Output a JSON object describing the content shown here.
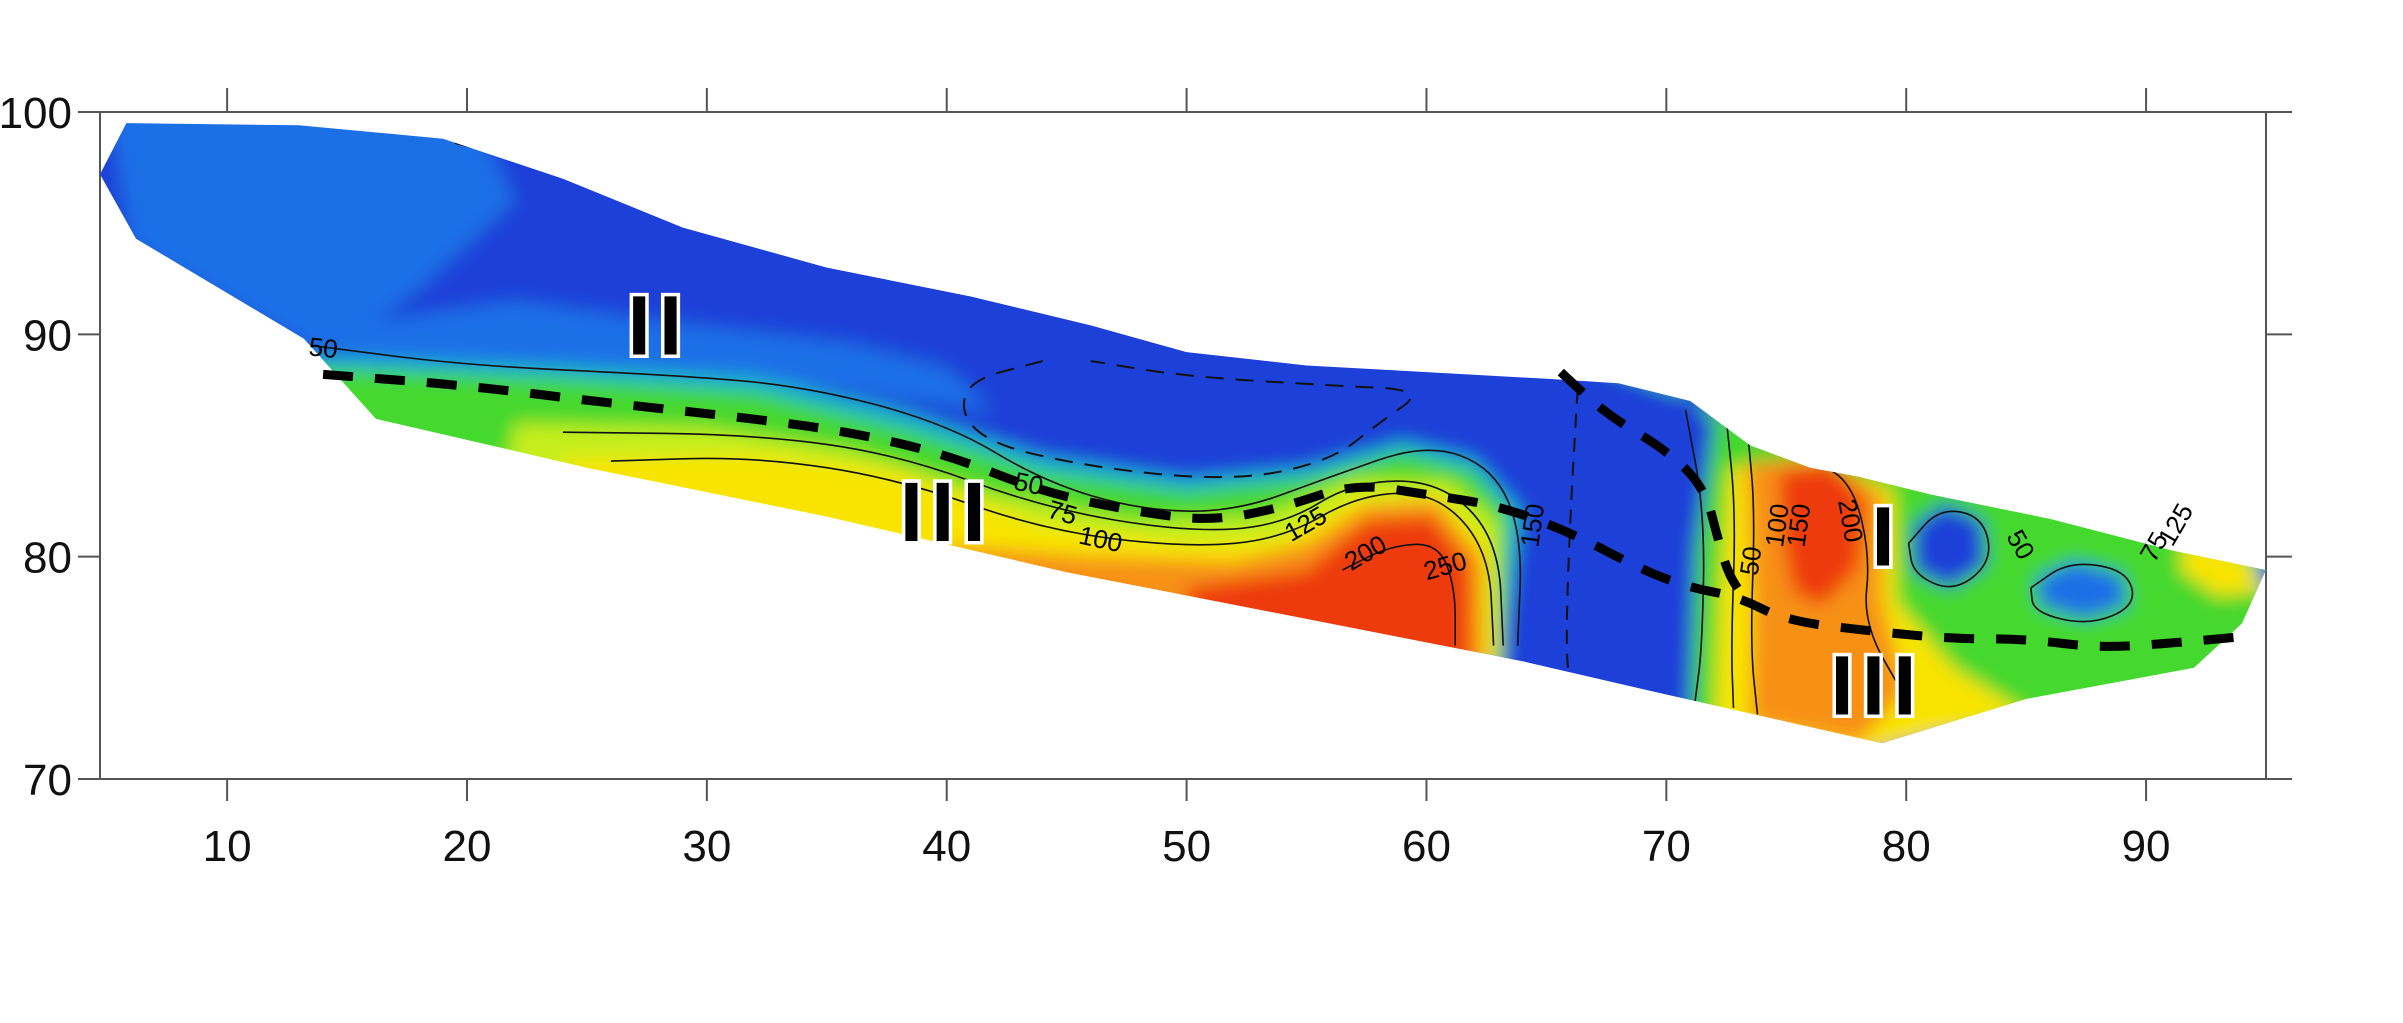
{
  "chart_data": {
    "type": "heatmap",
    "title": "",
    "xlabel": "",
    "ylabel": "",
    "xlim": [
      4.7,
      95
    ],
    "ylim": [
      70,
      100
    ],
    "x_ticks": [
      10,
      20,
      30,
      40,
      50,
      60,
      70,
      80,
      90
    ],
    "y_ticks": [
      70,
      80,
      90,
      100
    ],
    "grid": false,
    "colors": {
      "blue": "#1b3fd8",
      "mid_blue": "#1d70e6",
      "cyan": "#18b8c8",
      "green": "#45d82e",
      "yellow_green": "#c6ee1c",
      "yellow": "#f8e400",
      "orange": "#f79118",
      "red": "#ee3a10"
    },
    "profile_top": [
      [
        4.7,
        97.2
      ],
      [
        5.8,
        99.5
      ],
      [
        13,
        99.4
      ],
      [
        19,
        98.8
      ],
      [
        24,
        97.0
      ],
      [
        29,
        94.8
      ],
      [
        35,
        93.0
      ],
      [
        41,
        91.7
      ],
      [
        46,
        90.4
      ],
      [
        50,
        89.2
      ],
      [
        55,
        88.6
      ],
      [
        60,
        88.3
      ],
      [
        65,
        88.0
      ],
      [
        68,
        87.8
      ],
      [
        71,
        87.0
      ],
      [
        73.5,
        85.0
      ],
      [
        76,
        84.0
      ],
      [
        78,
        83.6
      ],
      [
        81,
        82.8
      ],
      [
        86,
        81.7
      ],
      [
        91,
        80.3
      ],
      [
        95,
        79.4
      ]
    ],
    "profile_bottom": [
      [
        95,
        79.4
      ],
      [
        94,
        77.0
      ],
      [
        92,
        75.0
      ],
      [
        85,
        73.6
      ],
      [
        79,
        71.6
      ],
      [
        70,
        73.8
      ],
      [
        64,
        75.3
      ],
      [
        55,
        77.2
      ],
      [
        45,
        79.3
      ],
      [
        35,
        81.8
      ],
      [
        25,
        84.0
      ],
      [
        16.2,
        86.2
      ],
      [
        13.2,
        89.8
      ],
      [
        6.2,
        94.3
      ],
      [
        4.7,
        97.2
      ]
    ],
    "contour_levels": [
      50,
      75,
      100,
      125,
      150,
      200,
      250
    ],
    "contour_labels": [
      {
        "text": "50",
        "x": 14,
        "y": 89.3,
        "angle": 6
      },
      {
        "text": "50",
        "x": 43.4,
        "y": 83.2,
        "angle": 12
      },
      {
        "text": "75",
        "x": 44.8,
        "y": 81.9,
        "angle": 16
      },
      {
        "text": "100",
        "x": 46.4,
        "y": 80.7,
        "angle": 12
      },
      {
        "text": "125",
        "x": 55,
        "y": 81.4,
        "angle": -30
      },
      {
        "text": "200",
        "x": 57.5,
        "y": 80.1,
        "angle": -30
      },
      {
        "text": "250",
        "x": 60.8,
        "y": 79.5,
        "angle": -16
      },
      {
        "text": "150",
        "x": 64.5,
        "y": 81.4,
        "angle": -82
      },
      {
        "text": "50",
        "x": 73.6,
        "y": 79.8,
        "angle": -82
      },
      {
        "text": "100",
        "x": 74.7,
        "y": 81.4,
        "angle": -82
      },
      {
        "text": "150",
        "x": 75.6,
        "y": 81.4,
        "angle": -82
      },
      {
        "text": "200",
        "x": 77.6,
        "y": 81.6,
        "angle": 80
      },
      {
        "text": "50",
        "x": 84.7,
        "y": 80.5,
        "angle": 60
      },
      {
        "text": "75",
        "x": 90.4,
        "y": 80.4,
        "angle": -60
      },
      {
        "text": "125",
        "x": 91.3,
        "y": 81.4,
        "angle": -60
      }
    ],
    "boundary_1": [
      [
        14,
        88.2
      ],
      [
        20,
        87.7
      ],
      [
        26,
        86.9
      ],
      [
        32,
        86.2
      ],
      [
        36,
        85.6
      ],
      [
        40,
        84.6
      ],
      [
        44,
        82.9
      ],
      [
        48,
        82.0
      ],
      [
        51,
        81.6
      ],
      [
        54,
        82.2
      ],
      [
        57,
        83.3
      ],
      [
        60,
        82.8
      ],
      [
        63,
        82.3
      ],
      [
        66,
        81.1
      ],
      [
        69,
        79.4
      ],
      [
        71,
        78.6
      ],
      [
        73,
        78.2
      ],
      [
        75,
        77.1
      ],
      [
        79,
        76.6
      ],
      [
        82,
        76.3
      ],
      [
        85,
        76.3
      ],
      [
        88,
        75.9
      ],
      [
        91,
        76.1
      ],
      [
        94,
        76.4
      ]
    ],
    "boundary_2": [
      [
        65.6,
        88.3
      ],
      [
        67.5,
        86.4
      ],
      [
        70,
        84.8
      ],
      [
        71.6,
        83.1
      ],
      [
        72.2,
        80.6
      ],
      [
        72.6,
        79.2
      ],
      [
        73.2,
        78.2
      ]
    ],
    "zone_labels": [
      {
        "text": "II",
        "x": 28,
        "y": 89.1
      },
      {
        "text": "III",
        "x": 40,
        "y": 80.7
      },
      {
        "text": "I",
        "x": 79.2,
        "y": 79.6
      },
      {
        "text": "III",
        "x": 78.8,
        "y": 72.9
      }
    ]
  }
}
